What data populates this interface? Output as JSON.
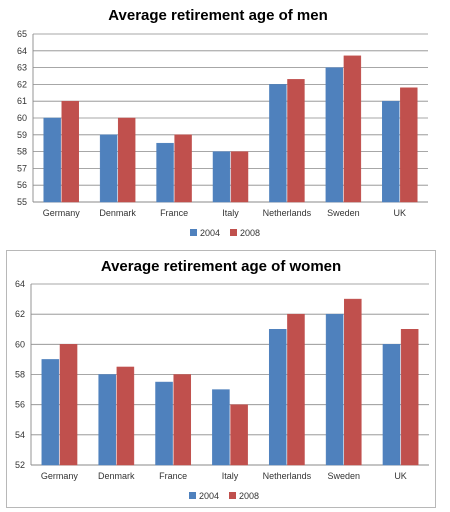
{
  "colors": {
    "series_2004": "#4F81BD",
    "series_2008": "#C0504D"
  },
  "chart_data": [
    {
      "type": "bar",
      "title": "Average retirement age of men",
      "categories": [
        "Germany",
        "Denmark",
        "France",
        "Italy",
        "Netherlands",
        "Sweden",
        "UK"
      ],
      "series": [
        {
          "name": "2004",
          "values": [
            60,
            59,
            58.5,
            58,
            62,
            63,
            61
          ]
        },
        {
          "name": "2008",
          "values": [
            61,
            60,
            59,
            58,
            62.3,
            63.7,
            61.8
          ]
        }
      ],
      "ylim": [
        55,
        65
      ],
      "yticks": [
        55,
        56,
        57,
        58,
        59,
        60,
        61,
        62,
        63,
        64,
        65
      ],
      "grid": true,
      "legend": "bottom"
    },
    {
      "type": "bar",
      "title": "Average retirement age of women",
      "categories": [
        "Germany",
        "Denmark",
        "France",
        "Italy",
        "Netherlands",
        "Sweden",
        "UK"
      ],
      "series": [
        {
          "name": "2004",
          "values": [
            59,
            58,
            57.5,
            57,
            61,
            62,
            60
          ]
        },
        {
          "name": "2008",
          "values": [
            60,
            58.5,
            58,
            56,
            62,
            63,
            61
          ]
        }
      ],
      "ylim": [
        52,
        64
      ],
      "yticks": [
        52,
        54,
        56,
        58,
        60,
        62,
        64
      ],
      "grid": true,
      "legend": "bottom"
    }
  ]
}
